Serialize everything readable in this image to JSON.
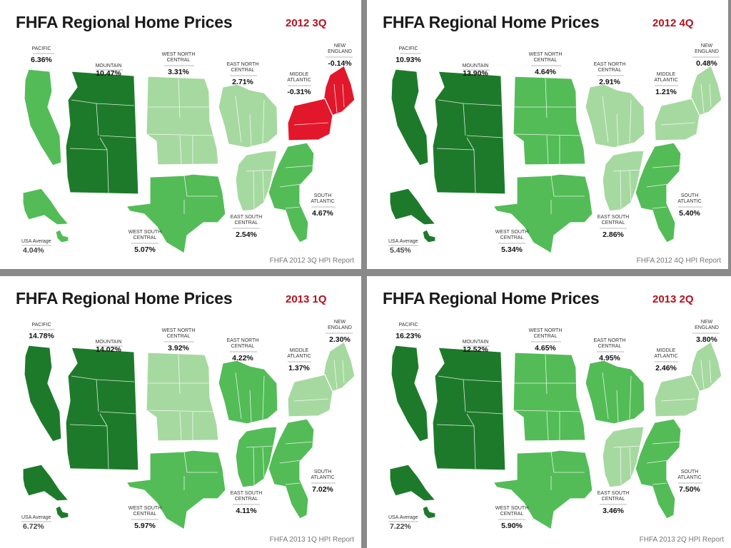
{
  "title": "FHFA Regional Home Prices",
  "colors": {
    "dark_green": "#1e7a2b",
    "mid_green": "#3aa843",
    "green": "#53bc57",
    "light_green": "#a6d9a0",
    "red": "#e2172b"
  },
  "panels": [
    {
      "quarter": "2012 3Q",
      "source": "FHFA 2012 3Q HPI Report",
      "usa_average": {
        "label": "USA Average",
        "value": "4.04%"
      },
      "regions": {
        "pacific": {
          "name": "PACIFIC",
          "value": "6.36%",
          "shade": "green"
        },
        "mountain": {
          "name": "MOUNTAIN",
          "value": "10.47%",
          "shade": "dark_green"
        },
        "west_north_central": {
          "name": "WEST NORTH CENTRAL",
          "value": "3.31%",
          "shade": "light_green"
        },
        "east_north_central": {
          "name": "EAST NORTH CENTRAL",
          "value": "2.71%",
          "shade": "light_green"
        },
        "new_england": {
          "name": "NEW ENGLAND",
          "value": "-0.14%",
          "shade": "red"
        },
        "middle_atlantic": {
          "name": "MIDDLE ATLANTIC",
          "value": "-0.31%",
          "shade": "red"
        },
        "west_south_central": {
          "name": "WEST SOUTH CENTRAL",
          "value": "5.07%",
          "shade": "green"
        },
        "east_south_central": {
          "name": "EAST SOUTH CENTRAL",
          "value": "2.54%",
          "shade": "light_green"
        },
        "south_atlantic": {
          "name": "SOUTH ATLANTIC",
          "value": "4.67%",
          "shade": "green"
        },
        "alaska": {
          "shade": "green"
        },
        "hawaii": {
          "shade": "green"
        }
      }
    },
    {
      "quarter": "2012 4Q",
      "source": "FHFA 2012 4Q HPI Report",
      "usa_average": {
        "label": "USA Average",
        "value": "5.45%"
      },
      "regions": {
        "pacific": {
          "name": "PACIFIC",
          "value": "10.93%",
          "shade": "dark_green"
        },
        "mountain": {
          "name": "MOUNTAIN",
          "value": "13.90%",
          "shade": "dark_green"
        },
        "west_north_central": {
          "name": "WEST NORTH CENTRAL",
          "value": "4.64%",
          "shade": "green"
        },
        "east_north_central": {
          "name": "EAST NORTH CENTRAL",
          "value": "2.91%",
          "shade": "light_green"
        },
        "new_england": {
          "name": "NEW ENGLAND",
          "value": "0.48%",
          "shade": "light_green"
        },
        "middle_atlantic": {
          "name": "MIDDLE ATLANTIC",
          "value": "1.21%",
          "shade": "light_green"
        },
        "west_south_central": {
          "name": "WEST SOUTH CENTRAL",
          "value": "5.34%",
          "shade": "green"
        },
        "east_south_central": {
          "name": "EAST SOUTH CENTRAL",
          "value": "2.86%",
          "shade": "light_green"
        },
        "south_atlantic": {
          "name": "SOUTH ATLANTIC",
          "value": "5.40%",
          "shade": "green"
        },
        "alaska": {
          "shade": "dark_green"
        },
        "hawaii": {
          "shade": "dark_green"
        }
      }
    },
    {
      "quarter": "2013 1Q",
      "source": "FHFA 2013 1Q HPI Report",
      "usa_average": {
        "label": "USA Average",
        "value": "6.72%"
      },
      "regions": {
        "pacific": {
          "name": "PACIFIC",
          "value": "14.78%",
          "shade": "dark_green"
        },
        "mountain": {
          "name": "MOUNTAIN",
          "value": "14.02%",
          "shade": "dark_green"
        },
        "west_north_central": {
          "name": "WEST NORTH CENTRAL",
          "value": "3.92%",
          "shade": "light_green"
        },
        "east_north_central": {
          "name": "EAST NORTH CENTRAL",
          "value": "4.22%",
          "shade": "green"
        },
        "new_england": {
          "name": "NEW ENGLAND",
          "value": "2.30%",
          "shade": "light_green"
        },
        "middle_atlantic": {
          "name": "MIDDLE ATLANTIC",
          "value": "1.37%",
          "shade": "light_green"
        },
        "west_south_central": {
          "name": "WEST SOUTH CENTRAL",
          "value": "5.97%",
          "shade": "green"
        },
        "east_south_central": {
          "name": "EAST SOUTH CENTRAL",
          "value": "4.11%",
          "shade": "green"
        },
        "south_atlantic": {
          "name": "SOUTH ATLANTIC",
          "value": "7.02%",
          "shade": "green"
        },
        "alaska": {
          "shade": "dark_green"
        },
        "hawaii": {
          "shade": "dark_green"
        }
      }
    },
    {
      "quarter": "2013 2Q",
      "source": "FHFA 2013 2Q HPI Report",
      "usa_average": {
        "label": "USA Average",
        "value": "7.22%"
      },
      "regions": {
        "pacific": {
          "name": "PACIFIC",
          "value": "16.23%",
          "shade": "dark_green"
        },
        "mountain": {
          "name": "MOUNTAIN",
          "value": "12.52%",
          "shade": "dark_green"
        },
        "west_north_central": {
          "name": "WEST NORTH CENTRAL",
          "value": "4.65%",
          "shade": "green"
        },
        "east_north_central": {
          "name": "EAST NORTH CENTRAL",
          "value": "4.95%",
          "shade": "green"
        },
        "new_england": {
          "name": "NEW ENGLAND",
          "value": "3.80%",
          "shade": "light_green"
        },
        "middle_atlantic": {
          "name": "MIDDLE ATLANTIC",
          "value": "2.46%",
          "shade": "light_green"
        },
        "west_south_central": {
          "name": "WEST SOUTH CENTRAL",
          "value": "5.90%",
          "shade": "green"
        },
        "east_south_central": {
          "name": "EAST SOUTH CENTRAL",
          "value": "3.46%",
          "shade": "light_green"
        },
        "south_atlantic": {
          "name": "SOUTH ATLANTIC",
          "value": "7.50%",
          "shade": "green"
        },
        "alaska": {
          "shade": "dark_green"
        },
        "hawaii": {
          "shade": "dark_green"
        }
      }
    }
  ]
}
